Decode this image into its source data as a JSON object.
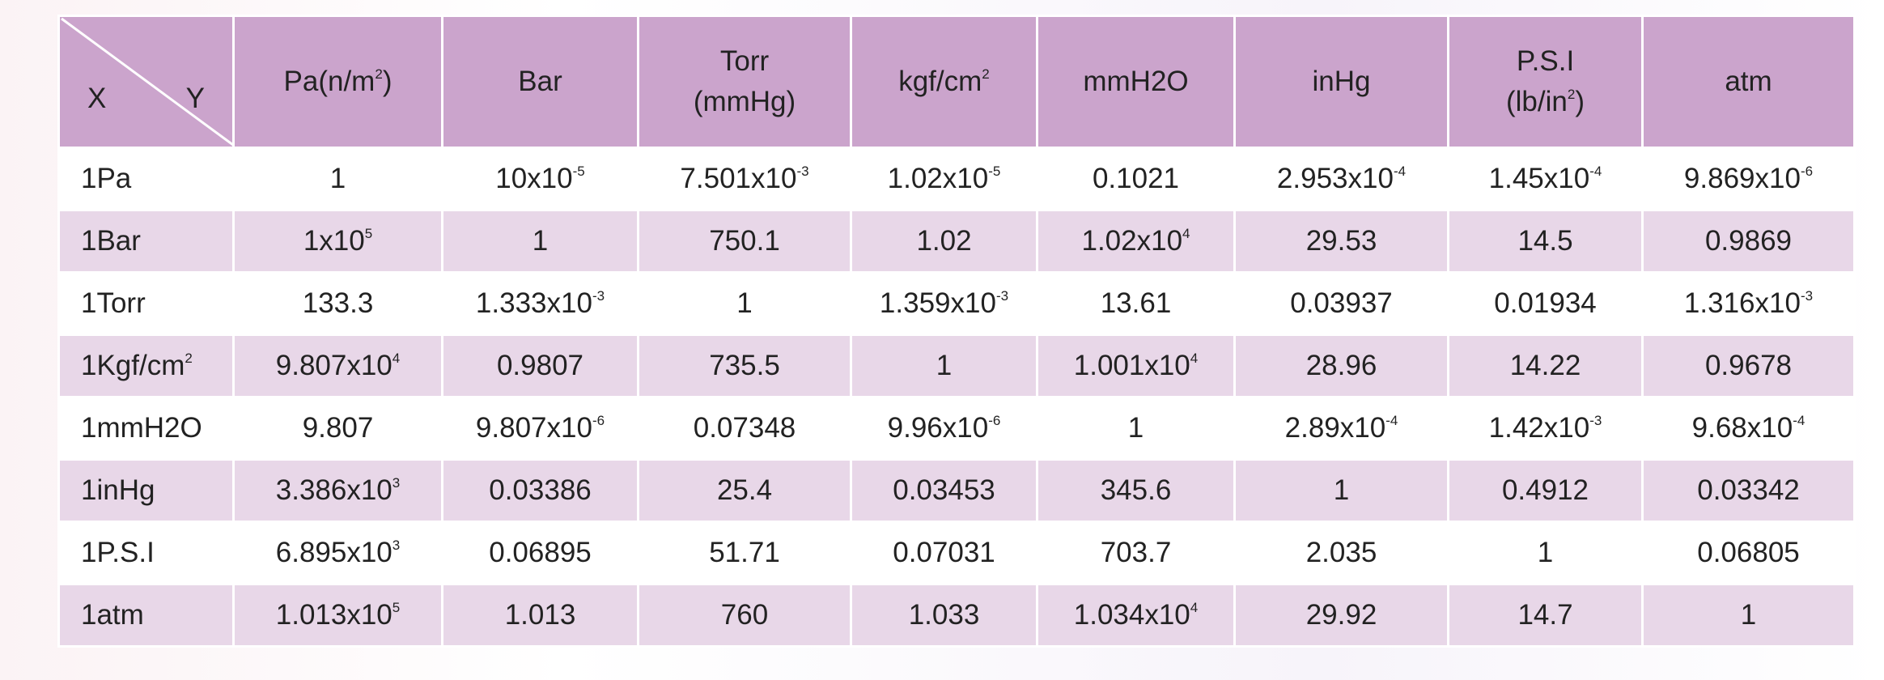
{
  "table": {
    "corner": {
      "x": "X",
      "y": "Y"
    },
    "columns": [
      [
        [
          "Pa(n/m",
          {
            "sup": "2"
          },
          ")"
        ]
      ],
      [
        [
          "Bar"
        ]
      ],
      [
        [
          "Torr"
        ],
        [
          "(mmHg)"
        ]
      ],
      [
        [
          "kgf/cm",
          {
            "sup": "2"
          }
        ]
      ],
      [
        [
          "mmH2O"
        ]
      ],
      [
        [
          "inHg"
        ]
      ],
      [
        [
          "P.S.I"
        ],
        [
          "(lb/in",
          {
            "sup": "2"
          },
          ")"
        ]
      ],
      [
        [
          "atm"
        ]
      ]
    ],
    "rows": [
      [
        [
          "1Pa"
        ],
        [
          "1"
        ],
        [
          "10x10",
          {
            "sup": "-5"
          }
        ],
        [
          "7.501x10",
          {
            "sup": "-3"
          }
        ],
        [
          "1.02x10",
          {
            "sup": "-5"
          }
        ],
        [
          "0.1021"
        ],
        [
          "2.953x10",
          {
            "sup": "-4"
          }
        ],
        [
          "1.45x10",
          {
            "sup": "-4"
          }
        ],
        [
          "9.869x10",
          {
            "sup": "-6"
          }
        ]
      ],
      [
        [
          "1Bar"
        ],
        [
          "1x10",
          {
            "sup": "5"
          }
        ],
        [
          "1"
        ],
        [
          "750.1"
        ],
        [
          "1.02"
        ],
        [
          "1.02x10",
          {
            "sup": "4"
          }
        ],
        [
          "29.53"
        ],
        [
          "14.5"
        ],
        [
          "0.9869"
        ]
      ],
      [
        [
          "1Torr"
        ],
        [
          "133.3"
        ],
        [
          "1.333x10",
          {
            "sup": "-3"
          }
        ],
        [
          "1"
        ],
        [
          "1.359x10",
          {
            "sup": "-3"
          }
        ],
        [
          "13.61"
        ],
        [
          "0.03937"
        ],
        [
          "0.01934"
        ],
        [
          "1.316x10",
          {
            "sup": "-3"
          }
        ]
      ],
      [
        [
          "1Kgf/cm",
          {
            "sup": "2"
          }
        ],
        [
          "9.807x10",
          {
            "sup": "4"
          }
        ],
        [
          "0.9807"
        ],
        [
          "735.5"
        ],
        [
          "1"
        ],
        [
          "1.001x10",
          {
            "sup": "4"
          }
        ],
        [
          "28.96"
        ],
        [
          "14.22"
        ],
        [
          "0.9678"
        ]
      ],
      [
        [
          "1mmH2O"
        ],
        [
          "9.807"
        ],
        [
          "9.807x10",
          {
            "sup": "-6"
          }
        ],
        [
          "0.07348"
        ],
        [
          "9.96x10",
          {
            "sup": "-6"
          }
        ],
        [
          "1"
        ],
        [
          "2.89x10",
          {
            "sup": "-4"
          }
        ],
        [
          "1.42x10",
          {
            "sup": "-3"
          }
        ],
        [
          "9.68x10",
          {
            "sup": "-4"
          }
        ]
      ],
      [
        [
          "1inHg"
        ],
        [
          "3.386x10",
          {
            "sup": "3"
          }
        ],
        [
          "0.03386"
        ],
        [
          "25.4"
        ],
        [
          "0.03453"
        ],
        [
          "345.6"
        ],
        [
          "1"
        ],
        [
          "0.4912"
        ],
        [
          "0.03342"
        ]
      ],
      [
        [
          "1P.S.I"
        ],
        [
          "6.895x10",
          {
            "sup": "3"
          }
        ],
        [
          "0.06895"
        ],
        [
          "51.71"
        ],
        [
          "0.07031"
        ],
        [
          "703.7"
        ],
        [
          "2.035"
        ],
        [
          "1"
        ],
        [
          "0.06805"
        ]
      ],
      [
        [
          "1atm"
        ],
        [
          "1.013x10",
          {
            "sup": "5"
          }
        ],
        [
          "1.013"
        ],
        [
          "760"
        ],
        [
          "1.033"
        ],
        [
          "1.034x10",
          {
            "sup": "4"
          }
        ],
        [
          "29.92"
        ],
        [
          "14.7"
        ],
        [
          "1"
        ]
      ]
    ]
  }
}
